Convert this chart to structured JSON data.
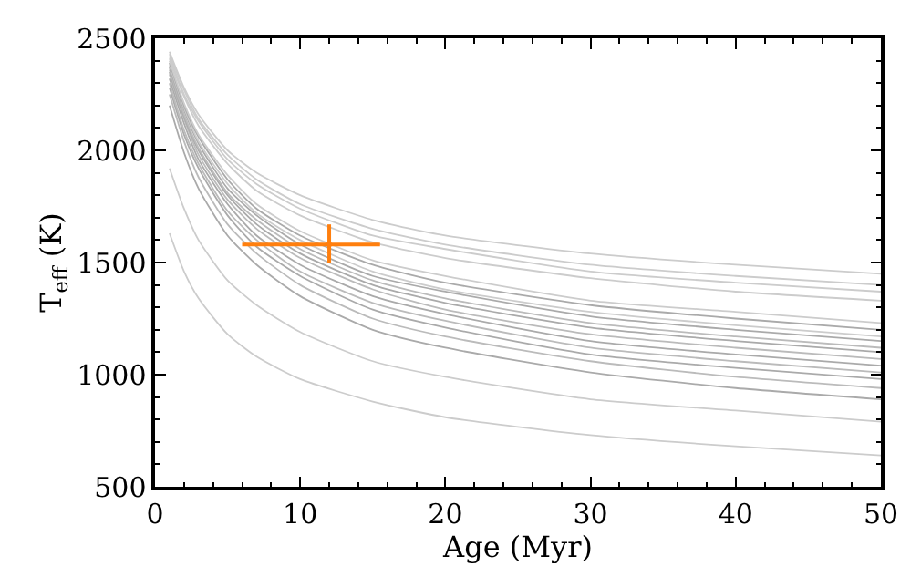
{
  "chart_data": {
    "type": "line",
    "xlabel": "Age (Myr)",
    "ylabel": "T$_{eff}$ (K)",
    "x": [
      1,
      2,
      3,
      5,
      7,
      10,
      15,
      20,
      30,
      40,
      50
    ],
    "xlim": [
      0,
      50
    ],
    "xticks": [
      0,
      10,
      20,
      30,
      40,
      50
    ],
    "ylim": [
      500,
      2500
    ],
    "yticks": [
      500,
      1000,
      1500,
      2000,
      2500
    ],
    "marker": "none",
    "line_style": "solid",
    "series": [
      {
        "color": "#cccccc",
        "values": [
          1630,
          1460,
          1340,
          1180,
          1080,
          980,
          880,
          810,
          730,
          680,
          640
        ]
      },
      {
        "color": "#cccccc",
        "values": [
          1920,
          1740,
          1600,
          1420,
          1310,
          1190,
          1060,
          990,
          890,
          840,
          790
        ]
      },
      {
        "color": "#aaaaaa",
        "values": [
          2200,
          1990,
          1830,
          1620,
          1490,
          1350,
          1200,
          1120,
          1010,
          940,
          890
        ]
      },
      {
        "color": "#bbbbbb",
        "values": [
          2250,
          2040,
          1880,
          1670,
          1540,
          1400,
          1250,
          1170,
          1060,
          990,
          940
        ]
      },
      {
        "color": "#aaaaaa",
        "values": [
          2280,
          2070,
          1920,
          1710,
          1570,
          1440,
          1290,
          1210,
          1090,
          1030,
          980
        ]
      },
      {
        "color": "#bbbbbb",
        "values": [
          2300,
          2090,
          1940,
          1730,
          1600,
          1460,
          1320,
          1240,
          1120,
          1060,
          1010
        ]
      },
      {
        "color": "#aaaaaa",
        "values": [
          2320,
          2120,
          1960,
          1760,
          1620,
          1490,
          1350,
          1270,
          1150,
          1090,
          1040
        ]
      },
      {
        "color": "#bbbbbb",
        "values": [
          2340,
          2140,
          1980,
          1780,
          1650,
          1520,
          1380,
          1290,
          1180,
          1120,
          1070
        ]
      },
      {
        "color": "#aaaaaa",
        "values": [
          2350,
          2150,
          2000,
          1800,
          1670,
          1540,
          1400,
          1320,
          1210,
          1150,
          1100
        ]
      },
      {
        "color": "#bbbbbb",
        "values": [
          2360,
          2160,
          2010,
          1810,
          1690,
          1560,
          1420,
          1340,
          1230,
          1170,
          1120
        ]
      },
      {
        "color": "#aaaaaa",
        "values": [
          2370,
          2180,
          2030,
          1830,
          1710,
          1580,
          1440,
          1370,
          1260,
          1200,
          1150
        ]
      },
      {
        "color": "#cccccc",
        "values": [
          2380,
          2190,
          2040,
          1850,
          1720,
          1600,
          1460,
          1380,
          1280,
          1220,
          1170
        ]
      },
      {
        "color": "#aaaaaa",
        "values": [
          2390,
          2200,
          2060,
          1870,
          1740,
          1620,
          1490,
          1410,
          1310,
          1250,
          1200
        ]
      },
      {
        "color": "#cccccc",
        "values": [
          2400,
          2210,
          2070,
          1890,
          1760,
          1640,
          1510,
          1440,
          1330,
          1280,
          1230
        ]
      },
      {
        "color": "#cccccc",
        "values": [
          2410,
          2240,
          2110,
          1940,
          1820,
          1710,
          1590,
          1520,
          1430,
          1370,
          1330
        ]
      },
      {
        "color": "#cccccc",
        "values": [
          2420,
          2250,
          2130,
          1960,
          1850,
          1740,
          1620,
          1560,
          1460,
          1410,
          1370
        ]
      },
      {
        "color": "#cccccc",
        "values": [
          2430,
          2270,
          2140,
          1980,
          1870,
          1760,
          1650,
          1580,
          1490,
          1440,
          1400
        ]
      },
      {
        "color": "#cccccc",
        "values": [
          2440,
          2280,
          2160,
          2000,
          1900,
          1800,
          1690,
          1620,
          1540,
          1490,
          1450
        ]
      },
      {
        "type": "scatter",
        "color": "#ff7f0e",
        "x": [
          12
        ],
        "values": [
          1580
        ],
        "errors": [
          [
            1500,
            1670
          ]
        ],
        "xerrors": [
          [
            6,
            15.5
          ]
        ]
      }
    ]
  }
}
